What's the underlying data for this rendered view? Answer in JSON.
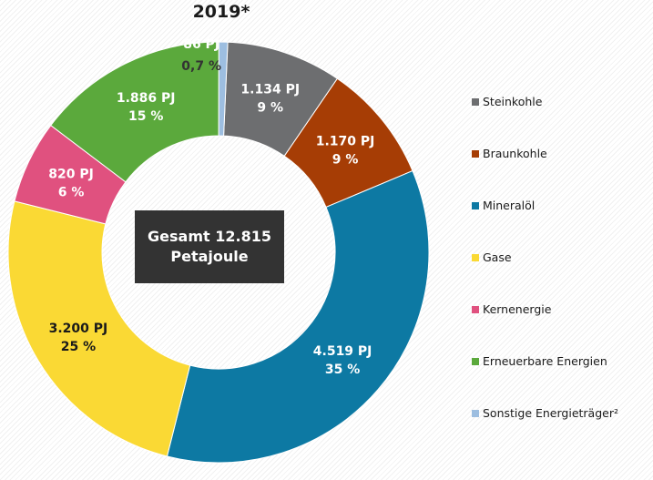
{
  "chart_data": {
    "type": "pie",
    "title": "2019*",
    "center_label": {
      "line1": "Gesamt 12.815",
      "line2": "Petajoule"
    },
    "legend_position": "right",
    "categories": [
      "Steinkohle",
      "Braunkohle",
      "Mineralöl",
      "Gase",
      "Kernenergie",
      "Erneuerbare Energien",
      "Sonstige Energieträger²"
    ],
    "series": [
      {
        "values": [
          1134,
          1170,
          4519,
          3200,
          820,
          1886,
          86
        ],
        "value_labels": [
          "1.134 PJ",
          "1.170 PJ",
          "4.519 PJ",
          "3.200 PJ",
          "820 PJ",
          "1.886 PJ",
          "86 PJ"
        ],
        "percent_labels": [
          "9 %",
          "9 %",
          "35 %",
          "25 %",
          "6 %",
          "15 %",
          "0,7 %"
        ]
      }
    ],
    "colors": [
      "#6d6e70",
      "#a63d05",
      "#0d79a3",
      "#fad934",
      "#e0517f",
      "#5ba93c",
      "#9dbee0"
    ],
    "label_colors": [
      "#ffffff",
      "#ffffff",
      "#ffffff",
      "#1a1a1a",
      "#ffffff",
      "#ffffff",
      "#ffffff"
    ],
    "small_slice_label_color": "#333333"
  }
}
